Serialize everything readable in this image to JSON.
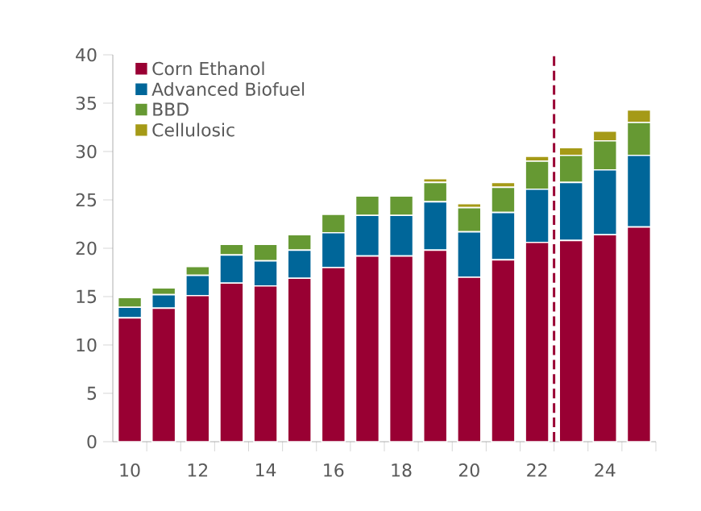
{
  "chart_data": {
    "type": "bar",
    "stacked": true,
    "x": [
      2010,
      2011,
      2012,
      2013,
      2014,
      2015,
      2016,
      2017,
      2018,
      2019,
      2020,
      2021,
      2022,
      2023,
      2024,
      2025
    ],
    "series": [
      {
        "name": "Corn Ethanol",
        "color": "#990033",
        "values": [
          12.8,
          13.8,
          15.1,
          16.4,
          16.1,
          16.9,
          18.0,
          19.2,
          19.2,
          19.8,
          17.0,
          18.8,
          20.6,
          20.8,
          21.4,
          22.2
        ]
      },
      {
        "name": "Advanced Biofuel",
        "color": "#006699",
        "values": [
          1.1,
          1.4,
          2.1,
          2.9,
          2.6,
          2.9,
          3.6,
          4.2,
          4.2,
          5.0,
          4.7,
          4.9,
          5.5,
          6.0,
          6.7,
          7.4
        ]
      },
      {
        "name": "BBD",
        "color": "#669933",
        "values": [
          1.0,
          0.7,
          0.9,
          1.1,
          1.7,
          1.6,
          1.9,
          2.0,
          2.0,
          2.0,
          2.5,
          2.6,
          2.9,
          2.8,
          3.0,
          3.4
        ]
      },
      {
        "name": "Cellulosic",
        "color": "#a59a17",
        "values": [
          0,
          0,
          0,
          0,
          0,
          0,
          0,
          0,
          0,
          0.4,
          0.4,
          0.5,
          0.5,
          0.8,
          1.0,
          1.3
        ]
      }
    ],
    "xlim": [
      2009.5,
      2025.5
    ],
    "xticks": [
      {
        "value": 2010,
        "label": "10"
      },
      {
        "value": 2012,
        "label": "12"
      },
      {
        "value": 2014,
        "label": "14"
      },
      {
        "value": 2016,
        "label": "16"
      },
      {
        "value": 2018,
        "label": "18"
      },
      {
        "value": 2020,
        "label": "20"
      },
      {
        "value": 2022,
        "label": "22"
      },
      {
        "value": 2024,
        "label": "24"
      },
      {
        "value": 2010.5,
        "label": null
      },
      {
        "value": 2011.5,
        "label": null
      },
      {
        "value": 2012.5,
        "label": null
      },
      {
        "value": 2013.5,
        "label": null
      },
      {
        "value": 2014.5,
        "label": null
      },
      {
        "value": 2015.5,
        "label": null
      },
      {
        "value": 2016.5,
        "label": null
      },
      {
        "value": 2017.5,
        "label": null
      },
      {
        "value": 2018.5,
        "label": null
      },
      {
        "value": 2019.5,
        "label": null
      },
      {
        "value": 2020.5,
        "label": null
      },
      {
        "value": 2021.5,
        "label": null
      },
      {
        "value": 2022.5,
        "label": null
      },
      {
        "value": 2023.5,
        "label": null
      },
      {
        "value": 2024.5,
        "label": null
      },
      {
        "value": 2025.5,
        "label": null
      }
    ],
    "ylim": [
      0,
      40
    ],
    "yticks": [
      0,
      5,
      10,
      15,
      20,
      25,
      30,
      35,
      40
    ],
    "ref_lines": [
      {
        "axis": "x",
        "value": 2022.5,
        "color": "#990033",
        "line_style": "dashed"
      }
    ],
    "legend": "top left",
    "grid": false
  }
}
